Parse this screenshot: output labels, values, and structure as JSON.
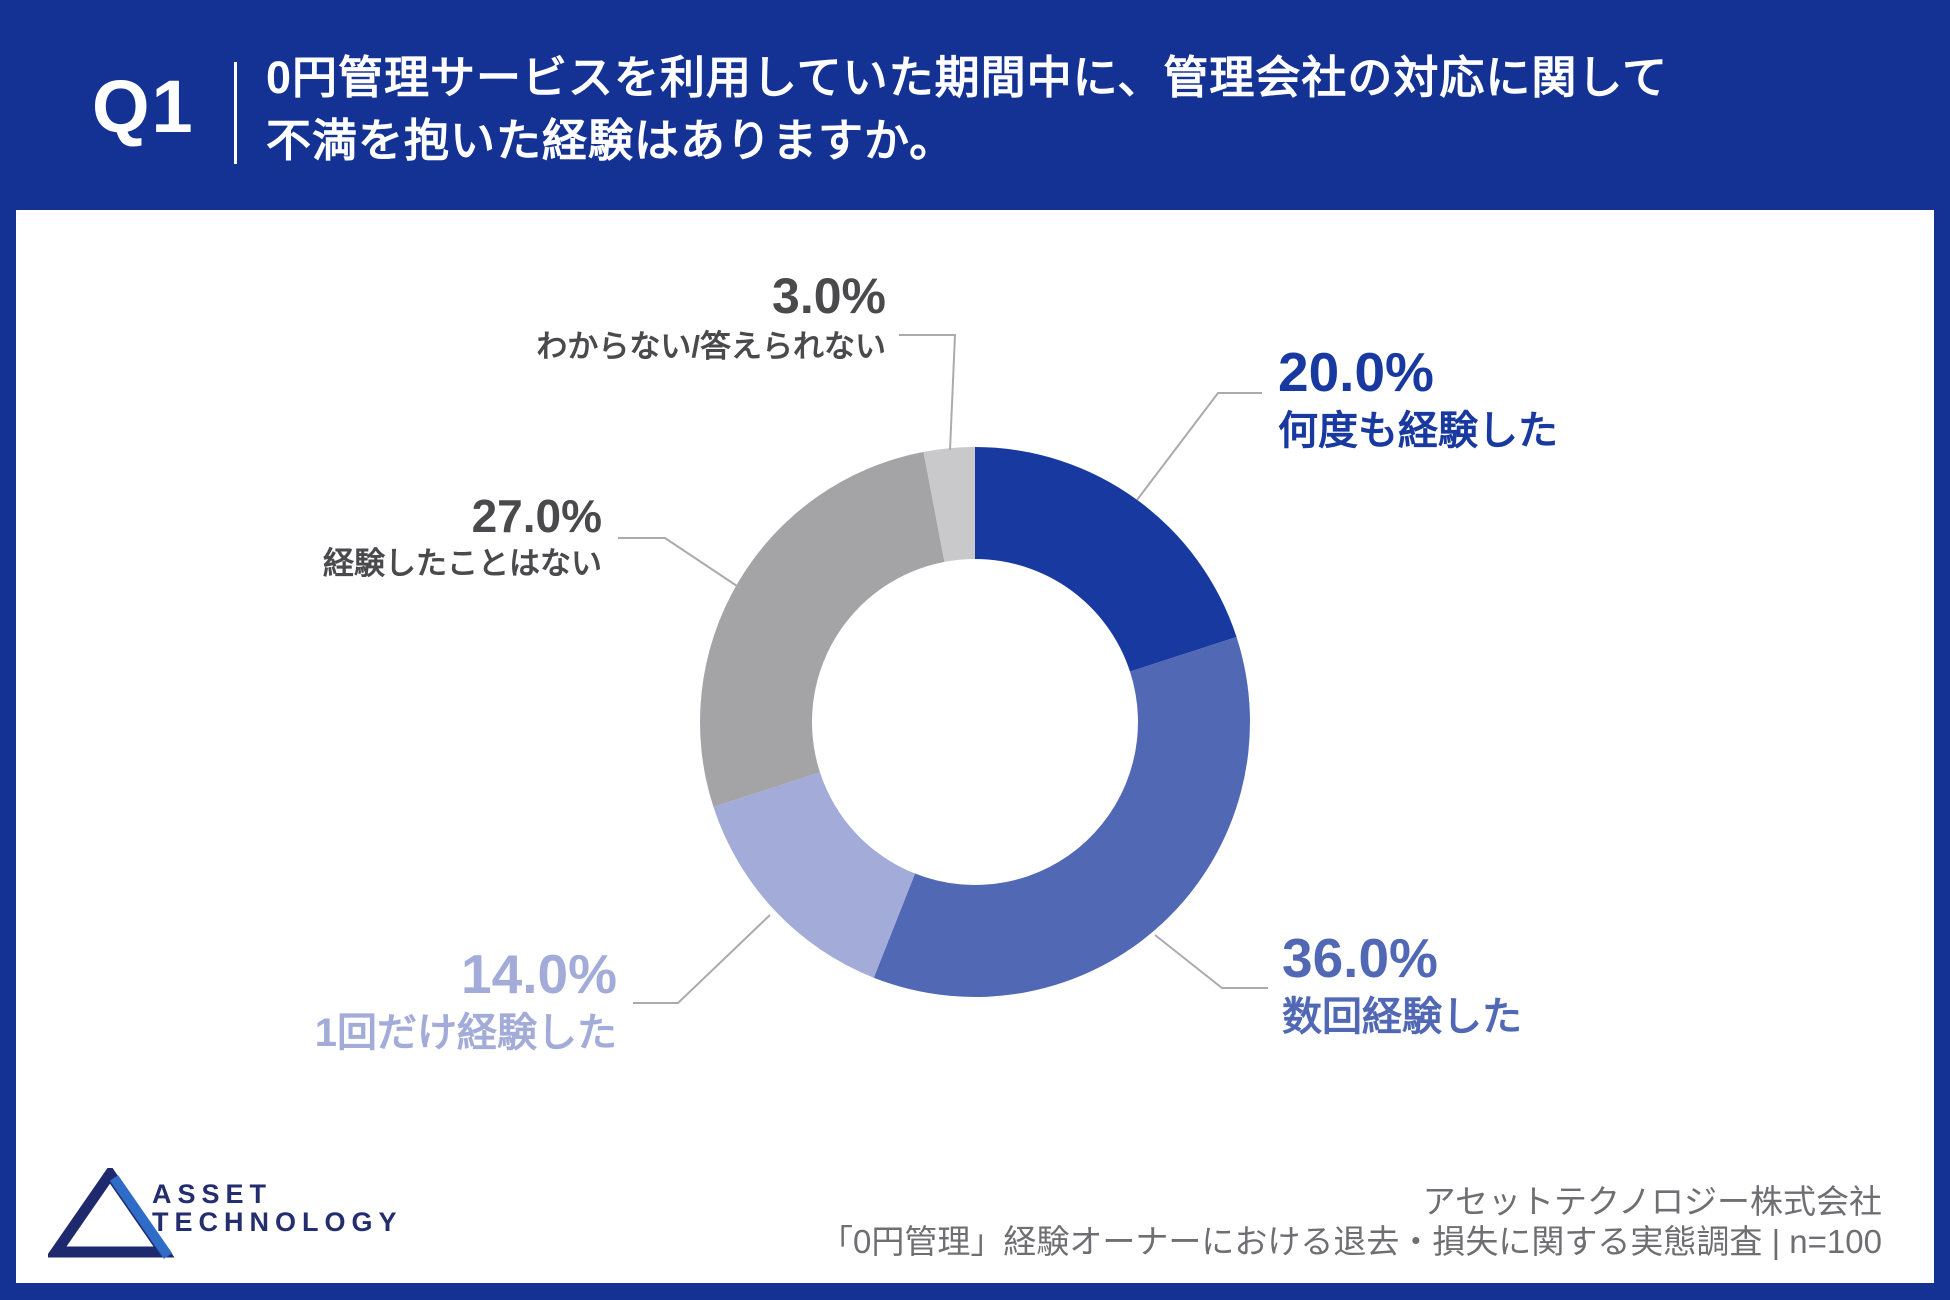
{
  "header": {
    "q_badge": "Q1",
    "title_line1": "0円管理サービスを利用していた期間中に、管理会社の対応に関して",
    "title_line2": "不満を抱いた経験はありますか。"
  },
  "chart_data": {
    "type": "pie",
    "donut": true,
    "title": "0円管理サービスを利用していた期間中に、管理会社の対応に関して不満を抱いた経験はありますか。",
    "n": 100,
    "start_angle_deg": 0,
    "direction": "clockwise",
    "categories": [
      "何度も経験した",
      "数回経験した",
      "1回だけ経験した",
      "経験したことはない",
      "わからない/答えられない"
    ],
    "values": [
      20.0,
      36.0,
      14.0,
      27.0,
      3.0
    ],
    "labels": [
      "20.0%",
      "36.0%",
      "14.0%",
      "27.0%",
      "3.0%"
    ],
    "colors": [
      "#1839A0",
      "#5168B5",
      "#A3ACD9",
      "#A4A4A6",
      "#C9C9CC"
    ],
    "legend": "none"
  },
  "footer": {
    "logo_line1": "ASSET",
    "logo_line2": "TECHNOLOGY",
    "company": "アセットテクノロジー株式会社",
    "source": "「0円管理」経験オーナーにおける退去・損失に関する実態調査 | n=100"
  }
}
